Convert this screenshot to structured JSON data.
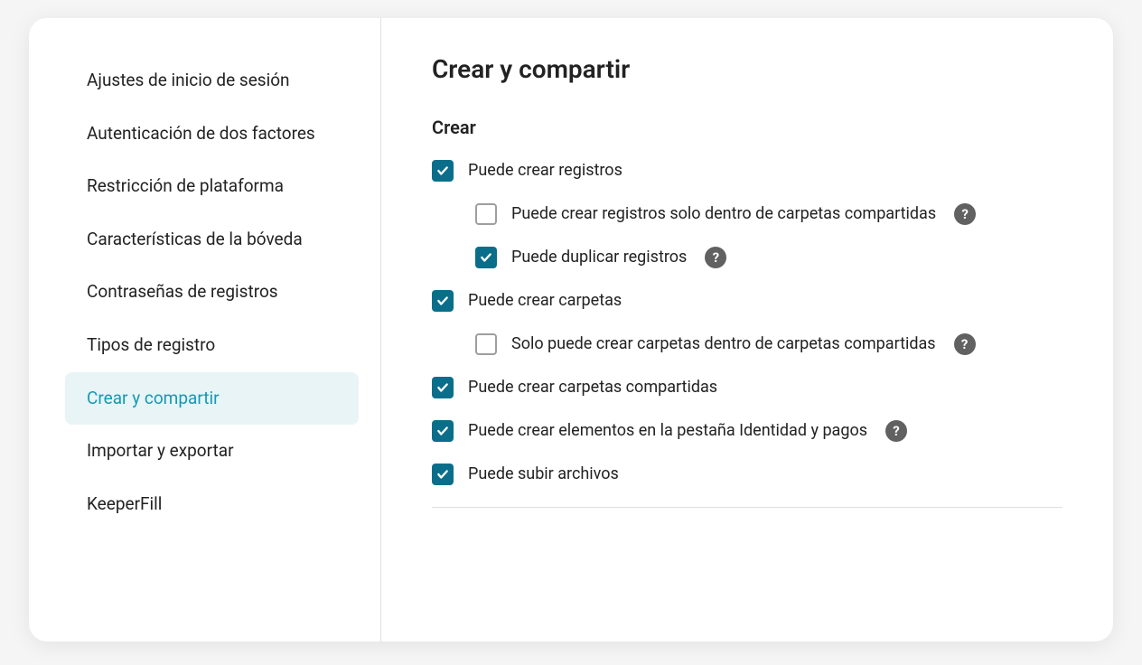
{
  "colors": {
    "accent": "#0a6e8a",
    "active_bg": "#e8f4f6",
    "active_text": "#1599b5",
    "text": "#222222",
    "help_bg": "#616161",
    "border": "#e0e0e0",
    "unchecked_border": "#9e9e9e"
  },
  "sidebar": {
    "items": [
      {
        "label": "Ajustes de inicio de sesión",
        "active": false
      },
      {
        "label": "Autenticación de dos factores",
        "active": false
      },
      {
        "label": "Restricción de plataforma",
        "active": false
      },
      {
        "label": "Características de la bóveda",
        "active": false
      },
      {
        "label": "Contraseñas de registros",
        "active": false
      },
      {
        "label": "Tipos de registro",
        "active": false
      },
      {
        "label": "Crear y compartir",
        "active": true
      },
      {
        "label": "Importar y exportar",
        "active": false
      },
      {
        "label": "KeeperFill",
        "active": false
      }
    ]
  },
  "main": {
    "title": "Crear y compartir",
    "section_title": "Crear",
    "checkboxes": [
      {
        "label": "Puede crear registros",
        "checked": true,
        "indented": false,
        "help": false
      },
      {
        "label": "Puede crear registros solo dentro de carpetas compartidas",
        "checked": false,
        "indented": true,
        "help": true
      },
      {
        "label": "Puede duplicar registros",
        "checked": true,
        "indented": true,
        "help": true
      },
      {
        "label": "Puede crear carpetas",
        "checked": true,
        "indented": false,
        "help": false
      },
      {
        "label": "Solo puede crear carpetas dentro de carpetas compartidas",
        "checked": false,
        "indented": true,
        "help": true
      },
      {
        "label": "Puede crear carpetas compartidas",
        "checked": true,
        "indented": false,
        "help": false
      },
      {
        "label": "Puede crear elementos en la pestaña Identidad y pagos",
        "checked": true,
        "indented": false,
        "help": true
      },
      {
        "label": "Puede subir archivos",
        "checked": true,
        "indented": false,
        "help": false
      }
    ]
  }
}
